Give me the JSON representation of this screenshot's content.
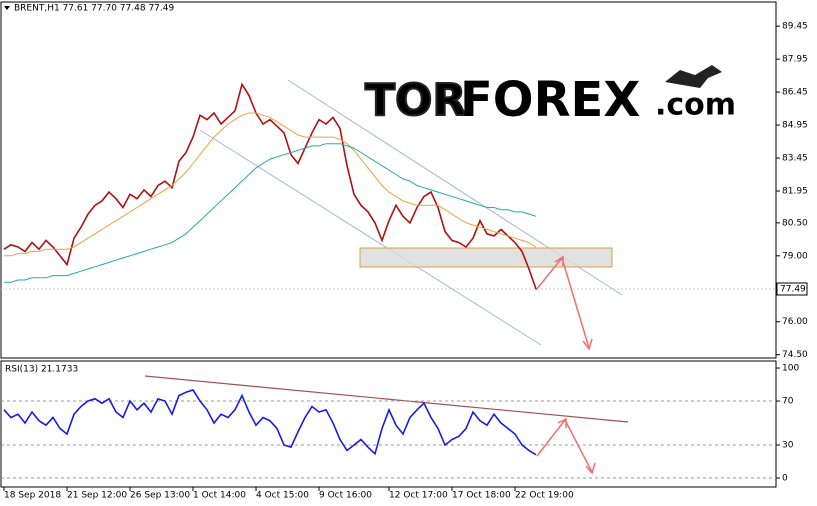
{
  "chart_data": [
    {
      "type": "line",
      "title": "BRENT,H1  77.61 77.70 77.48 77.49",
      "current_price": 77.49,
      "x": [
        0,
        1,
        2,
        3,
        4,
        5,
        6,
        7,
        8,
        9,
        10,
        11,
        12,
        13,
        14,
        15,
        16,
        17,
        18,
        19,
        20,
        21,
        22,
        23,
        24,
        25,
        26,
        27,
        28,
        29,
        30,
        31,
        32,
        33,
        34,
        35,
        36,
        37,
        38,
        39,
        40,
        41,
        42,
        43,
        44,
        45,
        46,
        47,
        48,
        49,
        50,
        51,
        52,
        53,
        54,
        55,
        56,
        57,
        58,
        59,
        60,
        61,
        62,
        63,
        64,
        65,
        66,
        67,
        68,
        69,
        70,
        71,
        72,
        73,
        74,
        75,
        76
      ],
      "series": [
        {
          "color": "#b01010",
          "values": [
            79.3,
            79.5,
            79.4,
            79.2,
            79.6,
            79.3,
            79.7,
            79.4,
            79.0,
            78.6,
            79.8,
            80.3,
            80.9,
            81.3,
            81.5,
            81.9,
            81.6,
            81.2,
            81.8,
            81.6,
            82.0,
            81.7,
            82.2,
            82.4,
            82.1,
            83.3,
            83.7,
            84.4,
            85.4,
            85.2,
            85.5,
            85.0,
            85.3,
            85.6,
            86.8,
            86.3,
            85.5,
            85.0,
            85.2,
            84.9,
            84.6,
            83.6,
            83.2,
            83.9,
            84.6,
            85.2,
            85.0,
            85.3,
            84.8,
            83.1,
            81.8,
            81.3,
            81.0,
            80.5,
            79.7,
            80.6,
            81.3,
            80.8,
            80.5,
            81.2,
            81.7,
            81.9,
            81.2,
            80.1,
            79.7,
            79.6,
            79.4,
            79.8,
            80.6,
            80.0,
            79.9,
            80.2,
            79.9,
            79.6,
            79.2,
            78.4,
            77.49
          ]
        },
        {
          "color": "#e8a33c",
          "values": [
            79.0,
            79.0,
            79.1,
            79.1,
            79.2,
            79.2,
            79.3,
            79.3,
            79.3,
            79.3,
            79.4,
            79.6,
            79.8,
            80.0,
            80.2,
            80.4,
            80.6,
            80.8,
            81.0,
            81.2,
            81.4,
            81.6,
            81.8,
            82.0,
            82.2,
            82.5,
            82.8,
            83.2,
            83.6,
            84.0,
            84.4,
            84.7,
            85.0,
            85.2,
            85.4,
            85.5,
            85.5,
            85.4,
            85.3,
            85.1,
            84.9,
            84.7,
            84.5,
            84.4,
            84.4,
            84.4,
            84.4,
            84.4,
            84.3,
            84.1,
            83.8,
            83.4,
            83.0,
            82.6,
            82.2,
            81.9,
            81.7,
            81.5,
            81.4,
            81.3,
            81.3,
            81.3,
            81.3,
            81.1,
            80.9,
            80.7,
            80.5,
            80.4,
            80.3,
            80.2,
            80.1,
            80.0,
            79.9,
            79.8,
            79.7,
            79.6,
            79.4
          ]
        },
        {
          "color": "#2aa8a8",
          "values": [
            77.8,
            77.8,
            77.9,
            77.9,
            78.0,
            78.0,
            78.0,
            78.1,
            78.1,
            78.1,
            78.2,
            78.3,
            78.4,
            78.5,
            78.6,
            78.7,
            78.8,
            78.9,
            79.0,
            79.1,
            79.2,
            79.3,
            79.4,
            79.5,
            79.6,
            79.8,
            80.0,
            80.3,
            80.6,
            80.9,
            81.2,
            81.5,
            81.8,
            82.1,
            82.4,
            82.7,
            83.0,
            83.2,
            83.4,
            83.5,
            83.6,
            83.7,
            83.8,
            83.9,
            84.0,
            84.0,
            84.1,
            84.1,
            84.1,
            84.0,
            83.9,
            83.7,
            83.5,
            83.3,
            83.1,
            82.9,
            82.7,
            82.5,
            82.4,
            82.2,
            82.1,
            82.0,
            81.9,
            81.8,
            81.7,
            81.6,
            81.5,
            81.4,
            81.3,
            81.2,
            81.2,
            81.1,
            81.1,
            81.0,
            81.0,
            80.9,
            80.8
          ]
        }
      ],
      "xlim": [
        0,
        110
      ],
      "ylim": [
        74.35,
        90.55
      ],
      "yticks": [
        89.45,
        87.95,
        86.45,
        84.95,
        83.45,
        81.95,
        {
          "value": 80.5,
          "label": "80.50"
        },
        {
          "value": 79,
          "label": "79.00"
        },
        {
          "value": 76,
          "label": "76.00"
        },
        {
          "value": 74.5,
          "label": "74.50"
        }
      ]
    },
    {
      "type": "line",
      "title": "RSI(13) 21.1733",
      "x": [
        0,
        1,
        2,
        3,
        4,
        5,
        6,
        7,
        8,
        9,
        10,
        11,
        12,
        13,
        14,
        15,
        16,
        17,
        18,
        19,
        20,
        21,
        22,
        23,
        24,
        25,
        26,
        27,
        28,
        29,
        30,
        31,
        32,
        33,
        34,
        35,
        36,
        37,
        38,
        39,
        40,
        41,
        42,
        43,
        44,
        45,
        46,
        47,
        48,
        49,
        50,
        51,
        52,
        53,
        54,
        55,
        56,
        57,
        58,
        59,
        60,
        61,
        62,
        63,
        64,
        65,
        66,
        67,
        68,
        69,
        70,
        71,
        72,
        73,
        74,
        75,
        76
      ],
      "series": [
        {
          "color": "#1a1ae6",
          "values": [
            62,
            55,
            58,
            50,
            60,
            52,
            48,
            55,
            45,
            40,
            58,
            65,
            70,
            72,
            68,
            72,
            60,
            55,
            70,
            62,
            68,
            60,
            72,
            70,
            58,
            75,
            78,
            80,
            70,
            62,
            50,
            58,
            55,
            62,
            75,
            60,
            48,
            55,
            52,
            45,
            30,
            28,
            42,
            55,
            65,
            60,
            62,
            50,
            35,
            25,
            30,
            35,
            28,
            22,
            45,
            62,
            48,
            40,
            55,
            62,
            68,
            55,
            45,
            30,
            35,
            38,
            45,
            60,
            52,
            48,
            58,
            50,
            45,
            40,
            30,
            25,
            21.1733
          ]
        }
      ],
      "xlim": [
        0,
        110
      ],
      "ylim": [
        -8.2,
        105.5
      ],
      "yticks": [
        100,
        70,
        30,
        0
      ],
      "xticks": [
        {
          "value": 0,
          "label": "18 Sep 2018"
        },
        {
          "value": 9,
          "label": "21 Sep 12:00"
        },
        {
          "value": 18,
          "label": "26 Sep 13:00"
        },
        {
          "value": 27,
          "label": "1 Oct 14:00"
        },
        {
          "value": 36,
          "label": "4 Oct 15:00"
        },
        {
          "value": 45,
          "label": "9 Oct 16:00"
        },
        {
          "value": 55,
          "label": "12 Oct 17:00"
        },
        {
          "value": 64,
          "label": "17 Oct 18:00"
        },
        {
          "value": 73,
          "label": "22 Oct 19:00"
        }
      ]
    }
  ],
  "watermark": {
    "prefix": "TOR",
    "main": "FOREX",
    "suffix": ".com"
  }
}
